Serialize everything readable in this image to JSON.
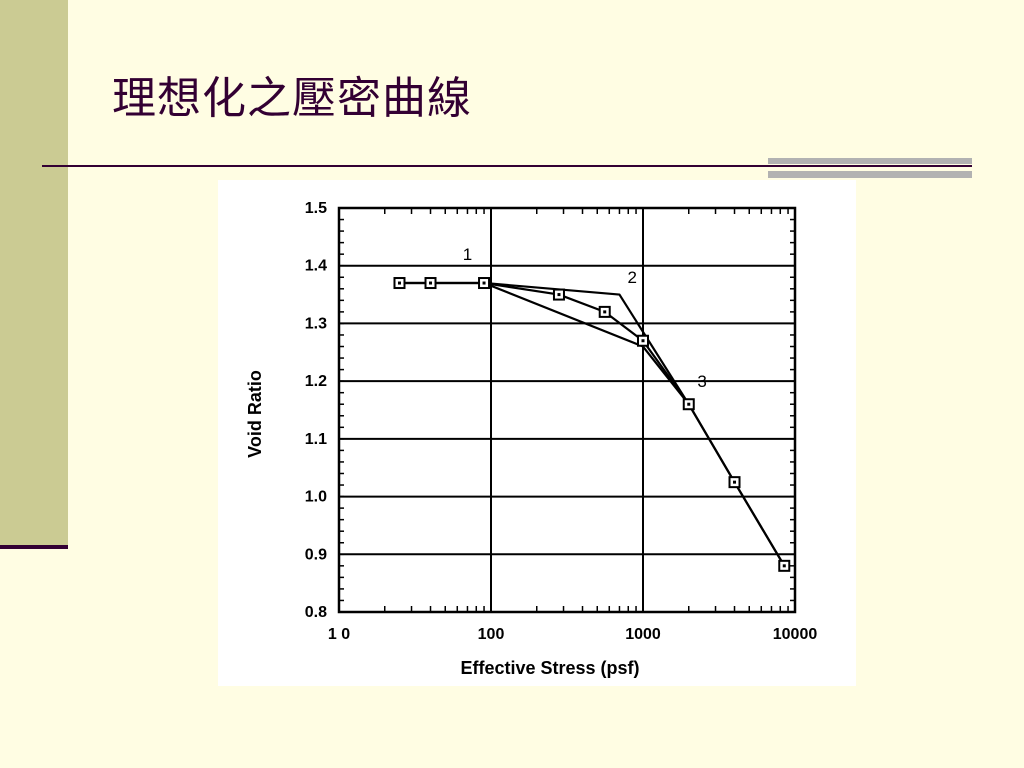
{
  "slide": {
    "title": "理想化之壓密曲線"
  },
  "chart_data": {
    "type": "line",
    "title": "",
    "xlabel": "Effective  Stress  (psf)",
    "ylabel": "Void Ratio",
    "x_scale": "log",
    "xlim": [
      10,
      10000
    ],
    "ylim": [
      0.8,
      1.5
    ],
    "x_ticks": [
      10,
      100,
      1000,
      10000
    ],
    "x_tick_labels": [
      "1 0",
      "100",
      "1000",
      "10000"
    ],
    "y_ticks": [
      0.8,
      0.9,
      1.0,
      1.1,
      1.2,
      1.3,
      1.4,
      1.5
    ],
    "y_tick_labels": [
      "0.8",
      "0.9",
      "1.0",
      "1.1",
      "1.2",
      "1.3",
      "1.4",
      "1.5"
    ],
    "grid": true,
    "series": [
      {
        "name": "1",
        "marker": "square",
        "x": [
          25,
          40,
          90,
          280,
          560,
          1000,
          2000,
          4000,
          8500
        ],
        "y": [
          1.37,
          1.37,
          1.37,
          1.35,
          1.32,
          1.27,
          1.16,
          1.025,
          0.88
        ]
      },
      {
        "name": "2",
        "marker": "none",
        "x": [
          25,
          90,
          700,
          2000,
          4000,
          8500
        ],
        "y": [
          1.37,
          1.37,
          1.35,
          1.16,
          1.025,
          0.88
        ]
      },
      {
        "name": "3",
        "marker": "none",
        "x": [
          90,
          1000,
          2000
        ],
        "y": [
          1.37,
          1.26,
          1.16
        ]
      }
    ],
    "annotations": [
      {
        "text": "1",
        "x": 70,
        "y": 1.41
      },
      {
        "text": "2",
        "x": 850,
        "y": 1.37
      },
      {
        "text": "3",
        "x": 2450,
        "y": 1.19
      }
    ]
  }
}
